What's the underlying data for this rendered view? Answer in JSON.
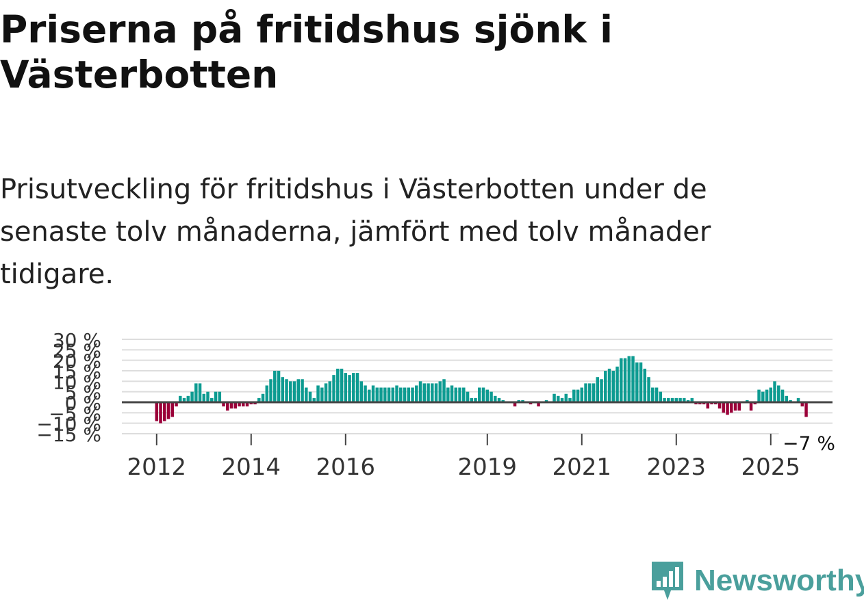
{
  "title": "Priserna på fritidshus sjönk i Västerbotten",
  "subtitle": "Prisutveckling för fritidshus i Västerbotten under de senaste tolv månaderna, jämfört med tolv månader tidigare.",
  "brand": {
    "name": "Newsworthy",
    "icon": "newsworthy-logo-icon",
    "color": "#4a9f9c"
  },
  "colors": {
    "positive": "#0d9b91",
    "negative": "#9b0039",
    "zero_line": "#444444",
    "grid": "#dddddd"
  },
  "chart_data": {
    "type": "bar",
    "title": "",
    "xlabel": "",
    "ylabel": "",
    "ylim": [
      -15,
      30
    ],
    "y_ticks": [
      30,
      25,
      20,
      15,
      10,
      5,
      0,
      -5,
      -10,
      -15
    ],
    "y_tick_labels": [
      "30 %",
      "25 %",
      "20 %",
      "15 %",
      "10 %",
      "5 %",
      "0 %",
      "−5 %",
      "−10 %",
      "−15 %"
    ],
    "x_ticks": [
      "2012",
      "2014",
      "2016",
      "2019",
      "2021",
      "2023",
      "2025"
    ],
    "start": "2012-01",
    "frequency": "monthly",
    "grid": true,
    "end_label": "−7 %",
    "values": [
      -9,
      -10,
      -9,
      -8,
      -7,
      -2,
      3,
      2,
      3,
      5,
      9,
      9,
      4,
      5,
      2,
      5,
      5,
      -2,
      -4,
      -3,
      -3,
      -2,
      -2,
      -2,
      -1,
      -1,
      2,
      4,
      8,
      11,
      15,
      15,
      12,
      11,
      10,
      10,
      11,
      11,
      7,
      5,
      2,
      8,
      7,
      9,
      10,
      13,
      16,
      16,
      14,
      13,
      14,
      14,
      10,
      8,
      6,
      8,
      7,
      7,
      7,
      7,
      7,
      8,
      7,
      7,
      7,
      7,
      8,
      10,
      9,
      9,
      9,
      9,
      10,
      11,
      7,
      8,
      7,
      7,
      7,
      5,
      2,
      2,
      7,
      7,
      6,
      5,
      3,
      2,
      1,
      0,
      0,
      -2,
      1,
      1,
      0,
      -1,
      0,
      -2,
      0,
      1,
      0,
      4,
      3,
      2,
      4,
      2,
      6,
      6,
      7,
      9,
      9,
      9,
      12,
      11,
      15,
      16,
      15,
      17,
      21,
      21,
      22,
      22,
      19,
      19,
      16,
      12,
      7,
      7,
      5,
      2,
      2,
      2,
      2,
      2,
      2,
      1,
      2,
      -1,
      -1,
      -1,
      -3,
      -1,
      -1,
      -3,
      -5,
      -6,
      -5,
      -4,
      -4,
      0,
      1,
      -4,
      -1,
      6,
      5,
      6,
      7,
      10,
      8,
      6,
      3,
      1,
      0,
      2,
      -2,
      -7
    ]
  }
}
